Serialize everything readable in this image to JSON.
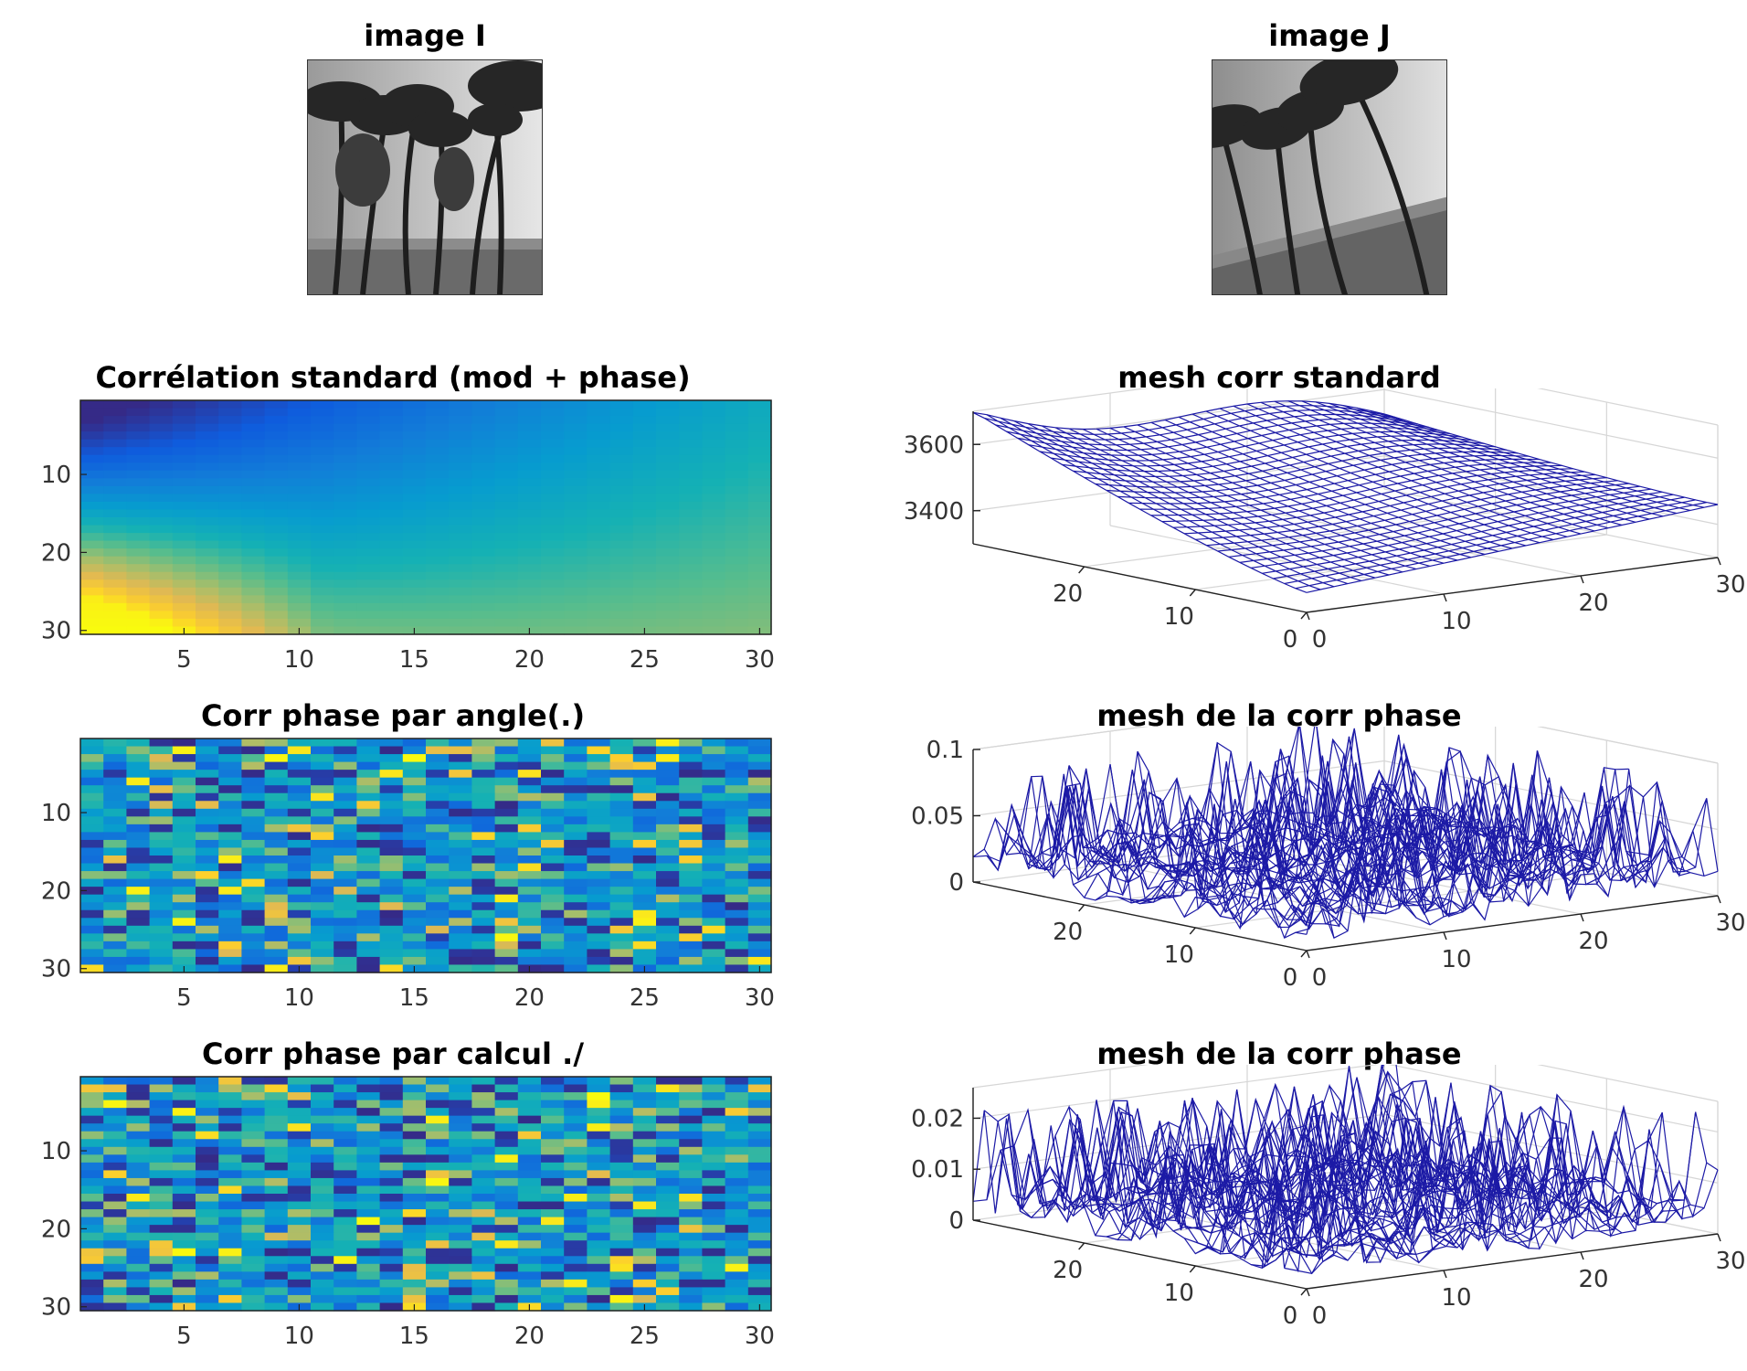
{
  "figure": {
    "image_i": {
      "title": "image I"
    },
    "image_j": {
      "title": "image J"
    }
  },
  "chart_data": [
    {
      "id": "corr_std",
      "type": "heatmap",
      "title": "Corrélation standard (mod + phase)",
      "xlabel": "",
      "ylabel": "",
      "xlim": [
        0.5,
        30.5
      ],
      "ylim": [
        0.5,
        30.5
      ],
      "xticks": [
        5,
        10,
        15,
        20,
        25,
        30
      ],
      "yticks": [
        10,
        20,
        30
      ],
      "y_direction": "reverse",
      "grid": false,
      "colormap": "parula",
      "rows": 30,
      "cols": 30,
      "pattern": "smooth gradient: minimum at top-left (dark blue), maximum at bottom-left (yellow), green-cyan to the right",
      "color_range": [
        3300,
        3700
      ]
    },
    {
      "id": "corr_angle",
      "type": "heatmap",
      "title": "Corr phase par angle(.)",
      "xlabel": "",
      "ylabel": "",
      "xlim": [
        0.5,
        30.5
      ],
      "ylim": [
        0.5,
        30.5
      ],
      "xticks": [
        5,
        10,
        15,
        20,
        25,
        30
      ],
      "yticks": [
        10,
        20,
        30
      ],
      "y_direction": "reverse",
      "grid": false,
      "colormap": "parula",
      "rows": 30,
      "cols": 30,
      "pattern": "noise-like, mostly blue with scattered yellow-orange cells",
      "color_range": [
        0,
        0.1
      ]
    },
    {
      "id": "corr_calc",
      "type": "heatmap",
      "title": "Corr phase par calcul ./",
      "xlabel": "",
      "ylabel": "",
      "xlim": [
        0.5,
        30.5
      ],
      "ylim": [
        0.5,
        30.5
      ],
      "xticks": [
        5,
        10,
        15,
        20,
        25,
        30
      ],
      "yticks": [
        10,
        20,
        30
      ],
      "y_direction": "reverse",
      "grid": false,
      "colormap": "parula",
      "rows": 30,
      "cols": 30,
      "pattern": "noise-like, mostly blue with scattered yellow-orange cells",
      "color_range": [
        0,
        0.02
      ]
    },
    {
      "id": "mesh_std",
      "type": "mesh",
      "title": "mesh corr standard",
      "xlim": [
        0,
        30
      ],
      "ylim": [
        0,
        30
      ],
      "zlim": [
        3300,
        3700
      ],
      "xticks": [
        0,
        10,
        20,
        30
      ],
      "yticks": [
        0,
        10,
        20
      ],
      "zticks": [
        3400,
        3600
      ],
      "zticklabels": [
        "3400",
        "3600"
      ],
      "grid": true,
      "line_color": "#1c1aa6",
      "pattern": "smooth surface, high (~3700) at far-left corner, low (~3300) near front"
    },
    {
      "id": "mesh_angle",
      "type": "mesh",
      "title": "mesh de la corr phase",
      "xlim": [
        0,
        30
      ],
      "ylim": [
        0,
        30
      ],
      "zlim": [
        0,
        0.1
      ],
      "xticks": [
        0,
        10,
        20,
        30
      ],
      "yticks": [
        0,
        10,
        20
      ],
      "zticks": [
        0,
        0.05,
        0.1
      ],
      "zticklabels": [
        "0",
        "0.05",
        "0.1"
      ],
      "grid": true,
      "line_color": "#1c1aa6",
      "pattern": "noisy spikes up to ~0.09"
    },
    {
      "id": "mesh_calc",
      "type": "mesh",
      "title": "mesh de la corr phase",
      "xlim": [
        0,
        30
      ],
      "ylim": [
        0,
        30
      ],
      "zlim": [
        0,
        0.026
      ],
      "xticks": [
        0,
        10,
        20,
        30
      ],
      "yticks": [
        0,
        10,
        20
      ],
      "zticks": [
        0,
        0.01,
        0.02
      ],
      "zticklabels": [
        "0",
        "0.01",
        "0.02"
      ],
      "grid": true,
      "line_color": "#1c1aa6",
      "pattern": "noisy spikes up to ~0.024"
    }
  ]
}
